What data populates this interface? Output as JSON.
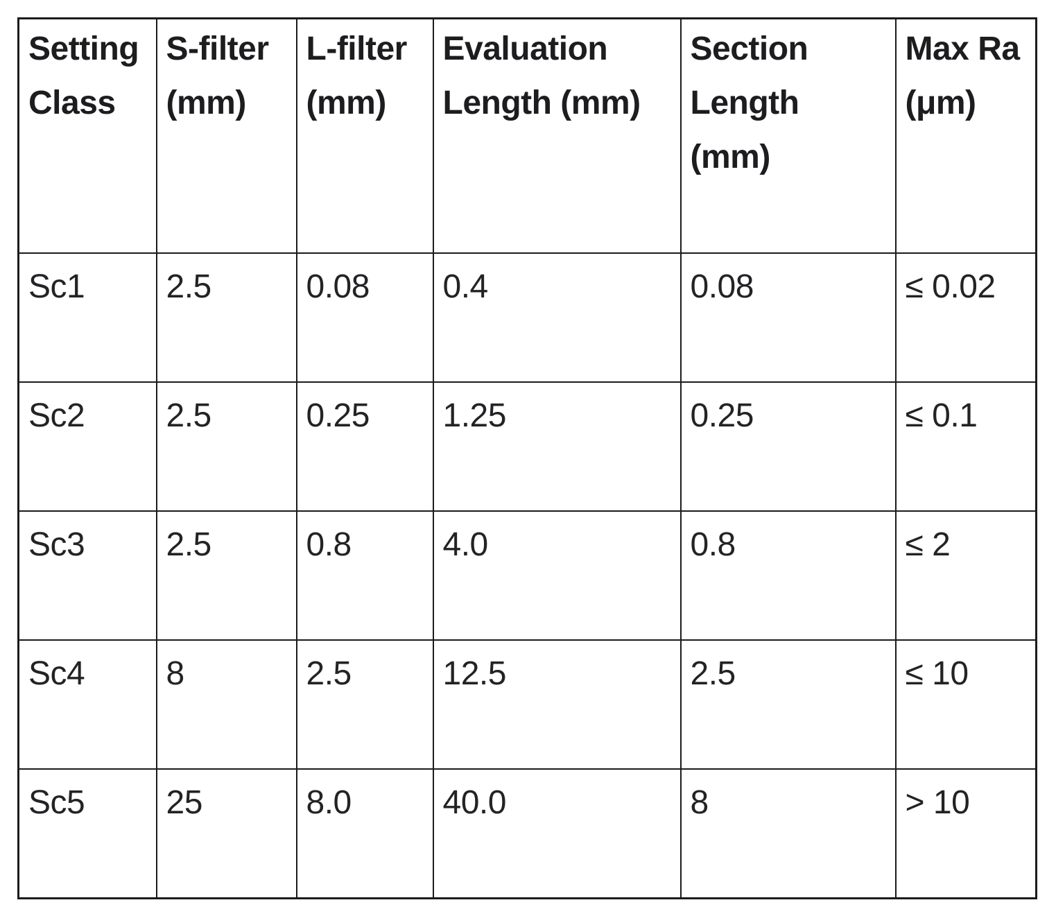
{
  "page": {
    "background_color": "#ffffff",
    "border_color": "#1b1b1b",
    "text_color": "#232326",
    "header_text_color": "#1d1d20"
  },
  "table": {
    "headers": [
      "Setting Class",
      "S-filter (mm)",
      "L-filter (mm)",
      "Evaluation Length (mm)",
      "Section Length (mm)",
      "Max Ra (μm)"
    ],
    "rows": [
      [
        "Sc1",
        "2.5",
        "0.08",
        "0.4",
        "0.08",
        "≤ 0.02"
      ],
      [
        "Sc2",
        "2.5",
        "0.25",
        "1.25",
        "0.25",
        "≤ 0.1"
      ],
      [
        "Sc3",
        "2.5",
        "0.8",
        "4.0",
        "0.8",
        "≤ 2"
      ],
      [
        "Sc4",
        "8",
        "2.5",
        "12.5",
        "2.5",
        "≤ 10"
      ],
      [
        "Sc5",
        "25",
        "8.0",
        "40.0",
        "8",
        "> 10"
      ]
    ]
  }
}
